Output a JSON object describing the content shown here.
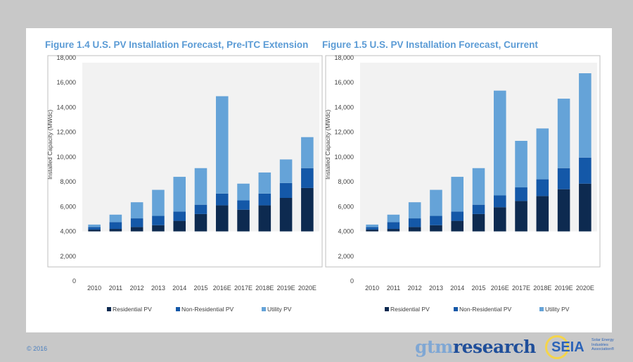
{
  "footer": {
    "copyright": "© 2016",
    "logo_gtm_a": "gtm",
    "logo_gtm_b": "research",
    "logo_seia": "SEIA",
    "logo_seia_sub": [
      "Solar Energy",
      "Industries",
      "Association®"
    ]
  },
  "colors": {
    "residential": "#0d2a50",
    "non_residential": "#1458a8",
    "utility": "#65a3d8",
    "plot_bg": "#f2f2f2",
    "title": "#5b9bd5"
  },
  "chart_data": [
    {
      "type": "bar",
      "stacked": true,
      "title": "Figure 1.4  U.S. PV Installation Forecast, Pre-ITC Extension",
      "ylabel": "Installed Capacity (MWdc)",
      "xlabel": "",
      "ylim": [
        0,
        18000
      ],
      "yticks": [
        "0",
        "2,000",
        "4,000",
        "6,000",
        "8,000",
        "10,000",
        "12,000",
        "14,000",
        "16,000",
        "18,000"
      ],
      "bar_baseline": 4000,
      "categories": [
        "2010",
        "2011",
        "2012",
        "2013",
        "2014",
        "2015",
        "2016E",
        "2017E",
        "2018E",
        "2019E",
        "2020E"
      ],
      "series": [
        {
          "name": "Residential PV",
          "values": [
            150,
            200,
            350,
            500,
            850,
            1400,
            2100,
            1750,
            2100,
            2700,
            3500
          ]
        },
        {
          "name": "Non-Residential PV",
          "values": [
            200,
            550,
            700,
            750,
            750,
            750,
            950,
            750,
            950,
            1200,
            1600
          ]
        },
        {
          "name": "Utility PV",
          "values": [
            200,
            600,
            1300,
            2100,
            2800,
            2950,
            7850,
            1350,
            1700,
            1900,
            2500
          ]
        }
      ],
      "legend": [
        "Residential PV",
        "Non-Residential PV",
        "Utility PV"
      ],
      "legend_position": "bottom",
      "grid": false
    },
    {
      "type": "bar",
      "stacked": true,
      "title": "Figure 1.5  U.S. PV Installation Forecast, Current",
      "ylabel": "Installed Capacity (MWdc)",
      "xlabel": "",
      "ylim": [
        0,
        18000
      ],
      "yticks": [
        "0",
        "2,000",
        "4,000",
        "6,000",
        "8,000",
        "10,000",
        "12,000",
        "14,000",
        "16,000",
        "18,000"
      ],
      "bar_baseline": 4000,
      "categories": [
        "2010",
        "2011",
        "2012",
        "2013",
        "2014",
        "2015",
        "2016E",
        "2017E",
        "2018E",
        "2019E",
        "2020E"
      ],
      "series": [
        {
          "name": "Residential PV",
          "values": [
            150,
            200,
            350,
            500,
            850,
            1400,
            1950,
            2450,
            2850,
            3400,
            3850
          ]
        },
        {
          "name": "Non-Residential PV",
          "values": [
            200,
            550,
            700,
            750,
            750,
            750,
            950,
            1100,
            1350,
            1700,
            2100
          ]
        },
        {
          "name": "Utility PV",
          "values": [
            200,
            600,
            1300,
            2100,
            2800,
            2950,
            8450,
            3750,
            4100,
            5600,
            6800
          ]
        }
      ],
      "legend": [
        "Residential PV",
        "Non-Residential PV",
        "Utility PV"
      ],
      "legend_position": "bottom",
      "grid": false
    }
  ]
}
